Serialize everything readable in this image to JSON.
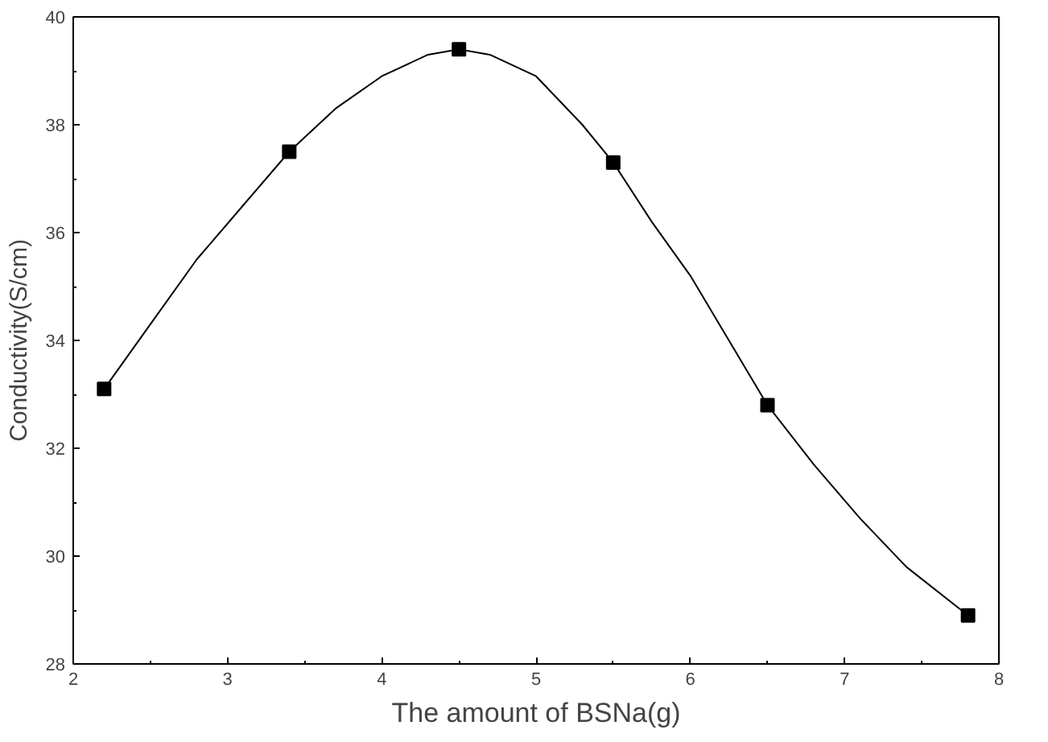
{
  "chart_data": {
    "type": "scatter",
    "xlabel": "The amount of BSNa(g)",
    "ylabel": "Conductivity(S/cm)",
    "x": [
      2.2,
      3.4,
      4.5,
      5.5,
      6.5,
      7.8
    ],
    "series": [
      {
        "type": "line",
        "marker": "none",
        "color": "#000000",
        "x": [
          2.2,
          2.5,
          2.8,
          3.1,
          3.4,
          3.7,
          4.0,
          4.3,
          4.5,
          4.7,
          5.0,
          5.3,
          5.5,
          5.75,
          6.0,
          6.25,
          6.5,
          6.8,
          7.1,
          7.4,
          7.8
        ],
        "values": [
          33.1,
          34.3,
          35.5,
          36.5,
          37.5,
          38.3,
          38.9,
          39.3,
          39.4,
          39.3,
          38.9,
          38.0,
          37.3,
          36.2,
          35.2,
          34.0,
          32.8,
          31.7,
          30.7,
          29.8,
          28.9
        ]
      },
      {
        "marker": "square",
        "color": "#000000",
        "values": [
          33.1,
          37.5,
          39.4,
          37.3,
          32.8,
          28.9
        ]
      }
    ],
    "xlim": [
      2,
      8
    ],
    "ylim": [
      28,
      40
    ],
    "xticks": [
      2,
      3,
      4,
      5,
      6,
      7,
      8
    ],
    "yticks": [
      28,
      30,
      32,
      34,
      36,
      38,
      40
    ],
    "line_style": "solid",
    "grid": false
  }
}
